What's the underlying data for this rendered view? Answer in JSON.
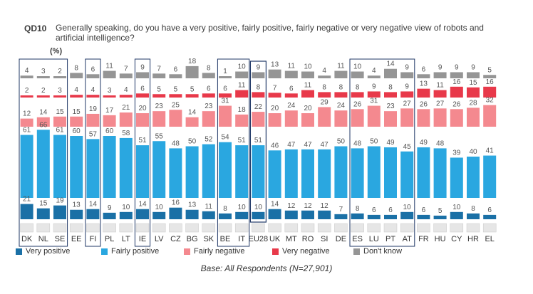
{
  "qcode": "QD10",
  "question": "Generally speaking, do you have a very positive, fairly positive, fairly negative or very negative view of robots and artificial intelligence?",
  "unit_label": "(%)",
  "base_note": "Base: All Respondents (N=27,901)",
  "colors": {
    "very_positive": "#1a70a6",
    "fairly_positive": "#2aa7e0",
    "fairly_negative": "#f4898f",
    "very_negative": "#e8394a",
    "dont_know": "#959595",
    "group_box": "#1f3766"
  },
  "chart_data": {
    "type": "bar",
    "stacked": true,
    "orientation": "vertical",
    "title": "QD10 Generally speaking, do you have a very positive, fairly positive, fairly negative or very negative view of robots and artificial intelligence?",
    "ylabel": "(%)",
    "categories": [
      "DK",
      "NL",
      "SE",
      "EE",
      "FI",
      "PL",
      "LT",
      "IE",
      "LV",
      "CZ",
      "BG",
      "SK",
      "BE",
      "IT",
      "EU28",
      "UK",
      "MT",
      "RO",
      "SI",
      "DE",
      "ES",
      "LU",
      "PT",
      "AT",
      "FR",
      "HU",
      "CY",
      "HR",
      "EL"
    ],
    "series": [
      {
        "name": "Very positive",
        "values": [
          21,
          15,
          19,
          13,
          14,
          9,
          10,
          14,
          10,
          16,
          13,
          11,
          8,
          10,
          10,
          14,
          12,
          12,
          12,
          7,
          8,
          6,
          6,
          10,
          6,
          5,
          10,
          8,
          6
        ]
      },
      {
        "name": "Fairly positive",
        "values": [
          61,
          66,
          61,
          60,
          57,
          60,
          58,
          51,
          55,
          48,
          50,
          52,
          54,
          51,
          51,
          46,
          47,
          47,
          47,
          50,
          48,
          50,
          49,
          45,
          49,
          48,
          39,
          40,
          41
        ]
      },
      {
        "name": "Fairly negative",
        "values": [
          12,
          14,
          15,
          15,
          19,
          17,
          21,
          20,
          23,
          25,
          14,
          23,
          31,
          18,
          22,
          20,
          24,
          20,
          29,
          24,
          26,
          31,
          23,
          27,
          26,
          27,
          26,
          28,
          32
        ]
      },
      {
        "name": "Very negative",
        "values": [
          2,
          2,
          3,
          4,
          4,
          3,
          4,
          6,
          5,
          5,
          5,
          6,
          6,
          11,
          8,
          7,
          6,
          11,
          8,
          8,
          8,
          9,
          8,
          9,
          13,
          11,
          16,
          15,
          16
        ]
      },
      {
        "name": "Don't know",
        "values": [
          4,
          3,
          2,
          8,
          6,
          11,
          7,
          9,
          7,
          6,
          18,
          8,
          1,
          10,
          9,
          13,
          11,
          10,
          4,
          11,
          10,
          4,
          14,
          9,
          6,
          9,
          9,
          9,
          5
        ]
      }
    ],
    "legend": [
      "Very positive",
      "Fairly positive",
      "Fairly negative",
      "Very negative",
      "Don't know"
    ],
    "legend_position": "bottom",
    "highlighted": "EU28",
    "groups": [
      [
        "DK",
        "NL",
        "SE"
      ],
      [
        "FI"
      ],
      [
        "IE"
      ],
      [
        "BE",
        "IT"
      ],
      [
        "ES",
        "LU",
        "PT",
        "AT"
      ]
    ]
  }
}
